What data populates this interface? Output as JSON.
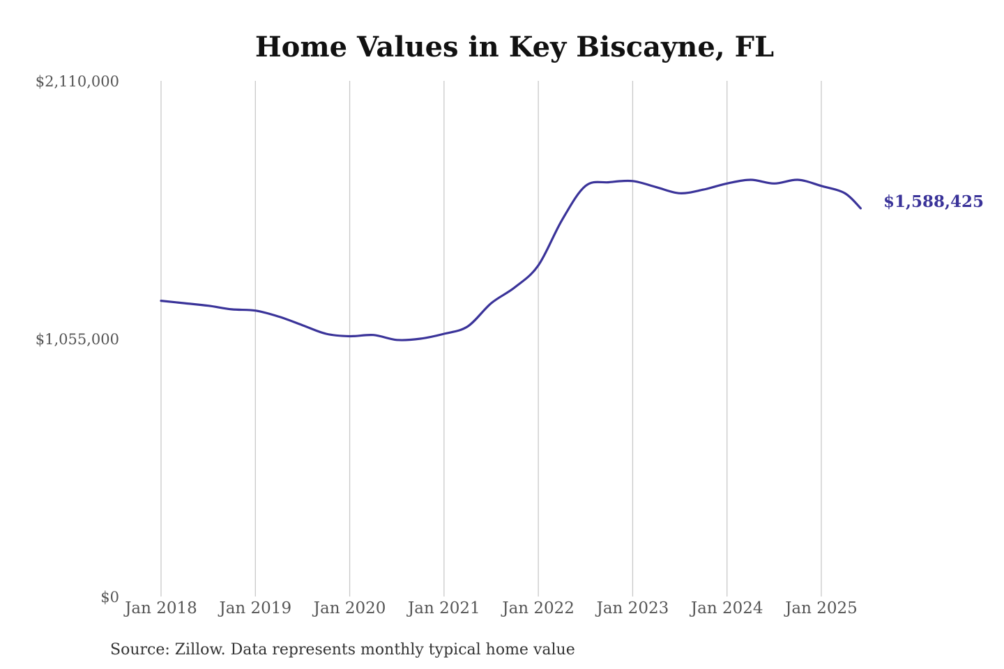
{
  "chart_data": {
    "type": "line",
    "title": "Home Values in Key Biscayne, FL",
    "xlabel": "",
    "ylabel": "",
    "source": "Source: Zillow. Data represents monthly typical home value",
    "ylim": [
      0,
      2110000
    ],
    "y_ticks": [
      {
        "value": 0,
        "label": "$0"
      },
      {
        "value": 1055000,
        "label": "$1,055,000"
      },
      {
        "value": 2110000,
        "label": "$2,110,000"
      }
    ],
    "x_ticks": [
      {
        "value": "2018-01",
        "label": "Jan 2018"
      },
      {
        "value": "2019-01",
        "label": "Jan 2019"
      },
      {
        "value": "2020-01",
        "label": "Jan 2020"
      },
      {
        "value": "2021-01",
        "label": "Jan 2021"
      },
      {
        "value": "2022-01",
        "label": "Jan 2022"
      },
      {
        "value": "2023-01",
        "label": "Jan 2023"
      },
      {
        "value": "2024-01",
        "label": "Jan 2024"
      },
      {
        "value": "2025-01",
        "label": "Jan 2025"
      }
    ],
    "grid": "vertical",
    "series_color": "#3a3399",
    "end_label": "$1,588,425",
    "series": [
      {
        "x": [
          "2018-01",
          "2018-04",
          "2018-07",
          "2018-10",
          "2019-01",
          "2019-04",
          "2019-07",
          "2019-10",
          "2020-01",
          "2020-04",
          "2020-07",
          "2020-10",
          "2021-01",
          "2021-04",
          "2021-07",
          "2021-10",
          "2022-01",
          "2022-04",
          "2022-07",
          "2022-10",
          "2023-01",
          "2023-04",
          "2023-07",
          "2023-10",
          "2024-01",
          "2024-04",
          "2024-07",
          "2024-10",
          "2025-01",
          "2025-04",
          "2025-06"
        ],
        "values": [
          1210000,
          1200000,
          1190000,
          1175000,
          1170000,
          1145000,
          1110000,
          1075000,
          1065000,
          1070000,
          1050000,
          1055000,
          1075000,
          1105000,
          1200000,
          1265000,
          1355000,
          1540000,
          1680000,
          1695000,
          1700000,
          1675000,
          1650000,
          1665000,
          1690000,
          1705000,
          1690000,
          1705000,
          1680000,
          1650000,
          1588425
        ]
      }
    ]
  }
}
